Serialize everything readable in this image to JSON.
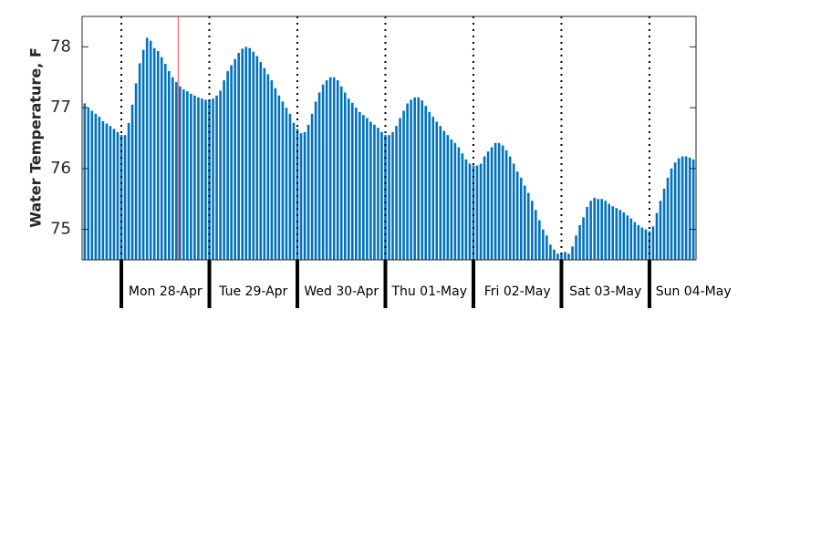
{
  "chart_data": {
    "type": "bar",
    "y_label": "Water Temperature, F",
    "color": "#0072bd",
    "xlim": [
      -10.7,
      156.7
    ],
    "ylim": [
      74.5,
      78.5
    ],
    "yticks": [
      75,
      76,
      77,
      78
    ],
    "xgrid": true,
    "xticks": [
      {
        "value": 0,
        "label": "Mon 28-Apr"
      },
      {
        "value": 24,
        "label": "Tue 29-Apr"
      },
      {
        "value": 48,
        "label": "Wed 30-Apr"
      },
      {
        "value": 72,
        "label": "Thu 01-May"
      },
      {
        "value": 96,
        "label": "Fri 02-May"
      },
      {
        "value": 120,
        "label": "Sat 03-May"
      },
      {
        "value": 144,
        "label": "Sun 04-May"
      }
    ],
    "vline": {
      "x": 15.5,
      "color": "#ff6666"
    },
    "x": [
      -10,
      -9,
      -8,
      -7,
      -6,
      -5,
      -4,
      -3,
      -2,
      -1,
      0,
      1,
      2,
      3,
      4,
      5,
      6,
      7,
      8,
      9,
      10,
      11,
      12,
      13,
      14,
      15,
      16,
      17,
      18,
      19,
      20,
      21,
      22,
      23,
      24,
      25,
      26,
      27,
      28,
      29,
      30,
      31,
      32,
      33,
      34,
      35,
      36,
      37,
      38,
      39,
      40,
      41,
      42,
      43,
      44,
      45,
      46,
      47,
      48,
      49,
      50,
      51,
      52,
      53,
      54,
      55,
      56,
      57,
      58,
      59,
      60,
      61,
      62,
      63,
      64,
      65,
      66,
      67,
      68,
      69,
      70,
      71,
      72,
      73,
      74,
      75,
      76,
      77,
      78,
      79,
      80,
      81,
      82,
      83,
      84,
      85,
      86,
      87,
      88,
      89,
      90,
      91,
      92,
      93,
      94,
      95,
      96,
      97,
      98,
      99,
      100,
      101,
      102,
      103,
      104,
      105,
      106,
      107,
      108,
      109,
      110,
      111,
      112,
      113,
      114,
      115,
      116,
      117,
      118,
      119,
      120,
      121,
      122,
      123,
      124,
      125,
      126,
      127,
      128,
      129,
      130,
      131,
      132,
      133,
      134,
      135,
      136,
      137,
      138,
      139,
      140,
      141,
      142,
      143,
      144,
      145,
      146,
      147,
      148,
      149,
      150,
      151,
      152,
      153,
      154,
      155,
      156
    ],
    "values": [
      77.07,
      77.0,
      76.95,
      76.9,
      76.85,
      76.78,
      76.74,
      76.7,
      76.65,
      76.6,
      76.55,
      76.55,
      76.75,
      77.05,
      77.4,
      77.73,
      77.95,
      78.15,
      78.1,
      77.98,
      77.93,
      77.83,
      77.72,
      77.6,
      77.5,
      77.42,
      77.35,
      77.3,
      77.27,
      77.23,
      77.2,
      77.17,
      77.15,
      77.13,
      77.12,
      77.15,
      77.2,
      77.28,
      77.45,
      77.6,
      77.7,
      77.8,
      77.9,
      77.97,
      78.0,
      77.98,
      77.92,
      77.85,
      77.75,
      77.65,
      77.55,
      77.45,
      77.32,
      77.2,
      77.1,
      77.0,
      76.9,
      76.75,
      76.65,
      76.58,
      76.6,
      76.72,
      76.9,
      77.1,
      77.25,
      77.38,
      77.45,
      77.5,
      77.5,
      77.45,
      77.35,
      77.25,
      77.15,
      77.08,
      77.0,
      76.93,
      76.88,
      76.83,
      76.77,
      76.72,
      76.67,
      76.6,
      76.55,
      76.55,
      76.6,
      76.7,
      76.83,
      76.95,
      77.07,
      77.13,
      77.17,
      77.17,
      77.12,
      77.03,
      76.93,
      76.85,
      76.77,
      76.7,
      76.62,
      76.55,
      76.48,
      76.42,
      76.35,
      76.25,
      76.15,
      76.08,
      76.05,
      76.05,
      76.08,
      76.2,
      76.28,
      76.35,
      76.42,
      76.42,
      76.38,
      76.3,
      76.2,
      76.08,
      75.95,
      75.85,
      75.72,
      75.6,
      75.47,
      75.32,
      75.15,
      75.0,
      74.9,
      74.75,
      74.67,
      74.6,
      74.6,
      74.63,
      74.6,
      74.72,
      74.9,
      75.07,
      75.2,
      75.37,
      75.47,
      75.52,
      75.5,
      75.5,
      75.47,
      75.42,
      75.38,
      75.35,
      75.32,
      75.28,
      75.23,
      75.18,
      75.12,
      75.07,
      75.03,
      75.0,
      74.97,
      75.05,
      75.27,
      75.47,
      75.67,
      75.85,
      76.0,
      76.1,
      76.17,
      76.2,
      76.2,
      76.18,
      76.15
    ]
  }
}
